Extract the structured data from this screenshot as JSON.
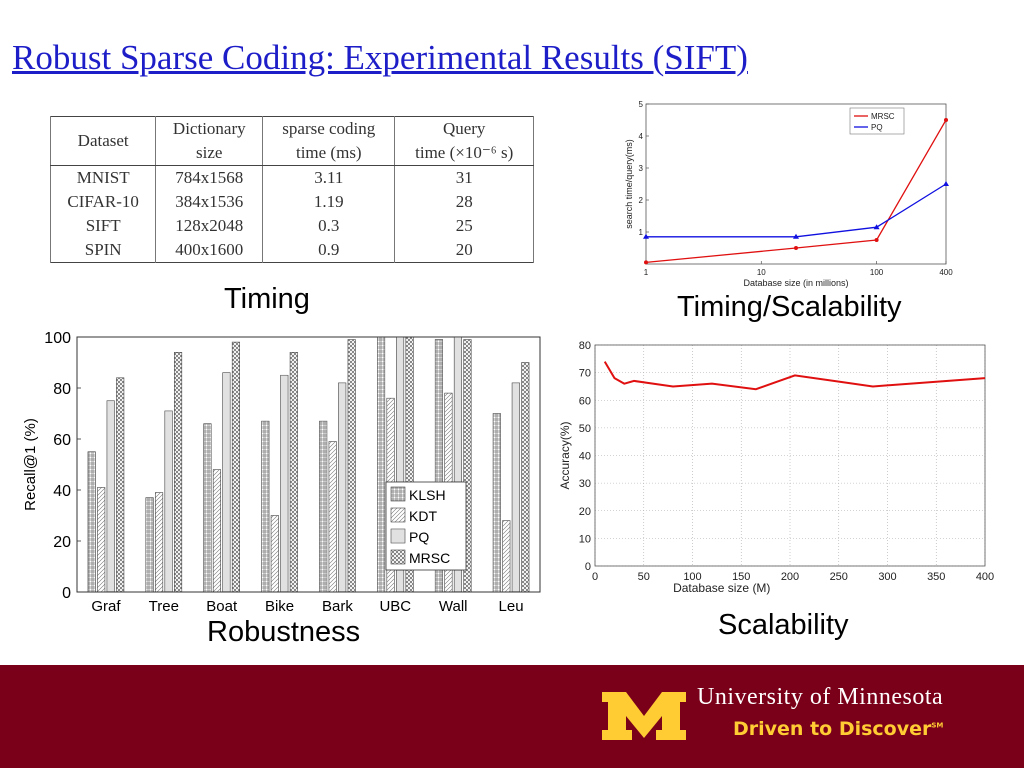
{
  "slide": {
    "title": "Robust Sparse Coding: Experimental Results (SIFT)",
    "captions": {
      "timing": "Timing",
      "timing_scalability": "Timing/Scalability",
      "robustness": "Robustness",
      "scalability": "Scalability"
    }
  },
  "table": {
    "headers": [
      [
        "Dataset",
        ""
      ],
      [
        "Dictionary",
        "size"
      ],
      [
        "sparse coding",
        "time (ms)"
      ],
      [
        "Query",
        "time (×10⁻⁶ s)"
      ]
    ],
    "rows": [
      [
        "MNIST",
        "784x1568",
        "3.11",
        "31"
      ],
      [
        "CIFAR-10",
        "384x1536",
        "1.19",
        "28"
      ],
      [
        "SIFT",
        "128x2048",
        "0.3",
        "25"
      ],
      [
        "SPIN",
        "400x1600",
        "0.9",
        "20"
      ]
    ]
  },
  "footer": {
    "university": "University of Minnesota",
    "tagline": "Driven to Discover",
    "tagline_mark": "SM",
    "maroon": "#7a0019",
    "gold": "#ffcc33"
  },
  "chart_data": [
    {
      "type": "line",
      "xlabel": "Database size (in millions)",
      "ylabel": "search time/query(ms)",
      "xscale": "log",
      "xlim": [
        1,
        400
      ],
      "ylim": [
        0,
        5
      ],
      "xticks": [
        "1",
        "10",
        "100",
        "400"
      ],
      "yticks": [
        "1",
        "2",
        "3",
        "4",
        "5"
      ],
      "legend": "top-right",
      "x": [
        1,
        20,
        100,
        400
      ],
      "series": [
        {
          "name": "MRSC",
          "color": "#e01010",
          "values": [
            0.05,
            0.5,
            0.75,
            4.5
          ]
        },
        {
          "name": "PQ",
          "color": "#1010e0",
          "values": [
            0.85,
            0.85,
            1.15,
            2.5
          ]
        }
      ]
    },
    {
      "type": "bar",
      "ylabel": "Recall@1 (%)",
      "ylim": [
        0,
        100
      ],
      "yticks": [
        "0",
        "20",
        "40",
        "60",
        "80",
        "100"
      ],
      "legend": "bottom-right",
      "categories": [
        "Graf",
        "Tree",
        "Boat",
        "Bike",
        "Bark",
        "UBC",
        "Wall",
        "Leu"
      ],
      "series": [
        {
          "name": "KLSH",
          "values": [
            55,
            37,
            66,
            67,
            67,
            100,
            99,
            70
          ]
        },
        {
          "name": "KDT",
          "values": [
            41,
            39,
            48,
            30,
            59,
            76,
            78,
            28
          ]
        },
        {
          "name": "PQ",
          "values": [
            75,
            71,
            86,
            85,
            82,
            100,
            100,
            82
          ]
        },
        {
          "name": "MRSC",
          "values": [
            84,
            94,
            98,
            94,
            99,
            100,
            99,
            90
          ]
        }
      ]
    },
    {
      "type": "line",
      "xlabel": "Database size (M)",
      "ylabel": "Accuracy(%)",
      "xlim": [
        0,
        400
      ],
      "ylim": [
        0,
        80
      ],
      "xticks": [
        "0",
        "50",
        "100",
        "150",
        "200",
        "250",
        "300",
        "350",
        "400"
      ],
      "yticks": [
        "0",
        "10",
        "20",
        "30",
        "40",
        "50",
        "60",
        "70",
        "80"
      ],
      "grid": true,
      "x": [
        10,
        20,
        30,
        40,
        80,
        120,
        165,
        205,
        285,
        400
      ],
      "series": [
        {
          "color": "#e01010",
          "values": [
            74,
            68,
            66,
            67,
            65,
            66,
            64,
            69,
            65,
            68
          ]
        }
      ]
    }
  ]
}
